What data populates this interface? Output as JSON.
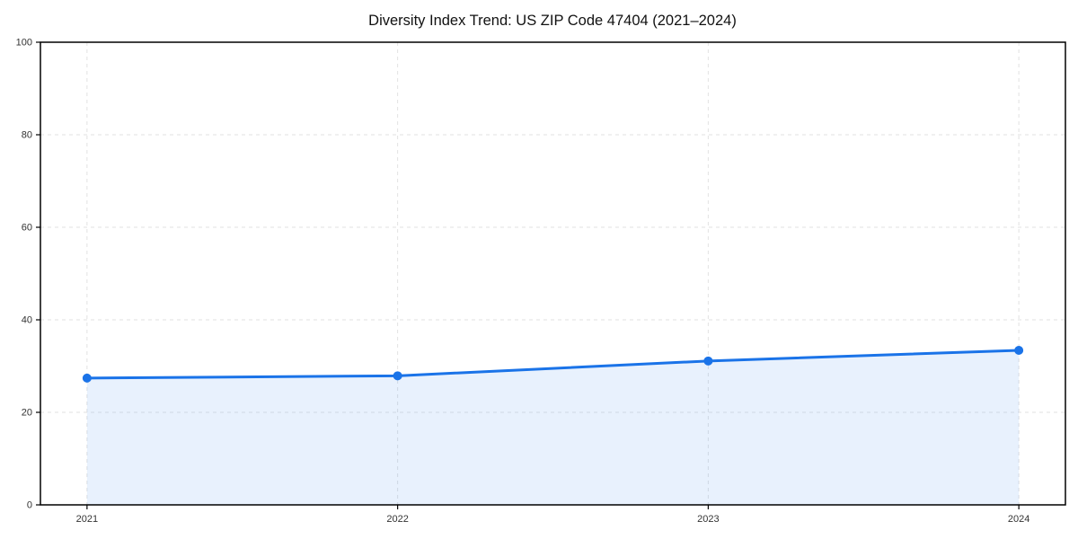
{
  "chart_data": {
    "type": "area",
    "title": "Diversity Index Trend: US ZIP Code 47404 (2021–2024)",
    "x": [
      2021,
      2022,
      2023,
      2024
    ],
    "values": [
      27.4,
      27.9,
      31.1,
      33.4
    ],
    "xticks": [
      "2021",
      "2022",
      "2023",
      "2024"
    ],
    "yticks": [
      0,
      20,
      40,
      60,
      80,
      100
    ],
    "ylim": [
      0,
      100
    ],
    "xlabel": "",
    "ylabel": "",
    "grid": true,
    "grid_style": "dashed",
    "legend": "none",
    "colors": {
      "line": "#1a73e8",
      "marker": "#1a73e8",
      "fill": "rgba(26,115,232,0.10)",
      "grid": "#e2e2e2",
      "axis": "#000000",
      "tick_label": "#333333",
      "title_text": "#111111",
      "background": "#ffffff"
    }
  }
}
